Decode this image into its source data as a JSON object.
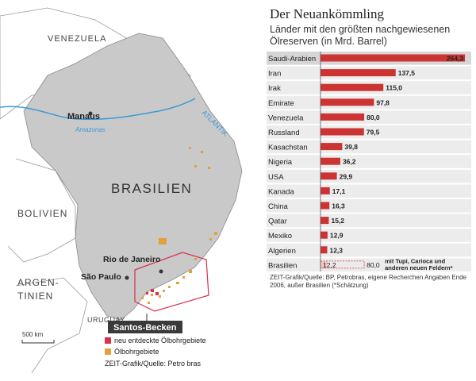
{
  "map": {
    "labels": {
      "venezuela": "VENEZUELA",
      "manaus": "Manaus",
      "amazonas": "Amazonas",
      "atlantik": "ATLANTIK",
      "brasilien": "BRASILIEN",
      "bolivien": "BOLIVIEN",
      "rio": "Rio de Janeiro",
      "saopaulo": "São Paulo",
      "argentinien_1": "ARGEN-",
      "argentinien_2": "TINIEN",
      "uruguay": "URUGUAY",
      "santos": "Santos-Becken",
      "scale": "500 km"
    },
    "legend": [
      {
        "label": "neu entdeckte Ölbohrgebiete",
        "color": "#d9314a"
      },
      {
        "label": "Ölbohrgebiete",
        "color": "#e0a23a"
      }
    ],
    "source": "ZEIT-Grafik/Quelle: Petro bras"
  },
  "chart_data": {
    "type": "bar",
    "title": "Der Neuankömmling",
    "subtitle": "Länder mit den größten nachgewiesenen Ölreserven (in Mrd. Barrel)",
    "categories": [
      "Saudi-Arabien",
      "Iran",
      "Irak",
      "Emirate",
      "Venezuela",
      "Russland",
      "Kasachstan",
      "Nigeria",
      "USA",
      "Kanada",
      "China",
      "Qatar",
      "Mexiko",
      "Algerien",
      "Brasilien"
    ],
    "values": [
      264.3,
      137.5,
      115.0,
      97.8,
      80.0,
      79.5,
      39.8,
      36.2,
      29.9,
      17.1,
      16.3,
      15.2,
      12.9,
      12.3,
      12.2
    ],
    "value_labels": [
      "264,3",
      "137,5",
      "115,0",
      "97,8",
      "80,0",
      "79,5",
      "39,8",
      "36,2",
      "29,9",
      "17,1",
      "16,3",
      "15,2",
      "12,9",
      "12,3",
      "12,2"
    ],
    "estimate": {
      "category": "Brasilien",
      "value": 80.0,
      "label": "80,0",
      "note_line1": "mit Tupi, Carioca und",
      "note_line2": "anderen neuen Feldern*"
    },
    "bar_color": "#cc3333",
    "xlim": [
      0,
      270
    ],
    "footnote": "ZEIT-Grafik/Quelle: BP, Petrobras, eigene Recherchen Angaben Ende 2006, außer Brasilien (*Schätzung)"
  }
}
